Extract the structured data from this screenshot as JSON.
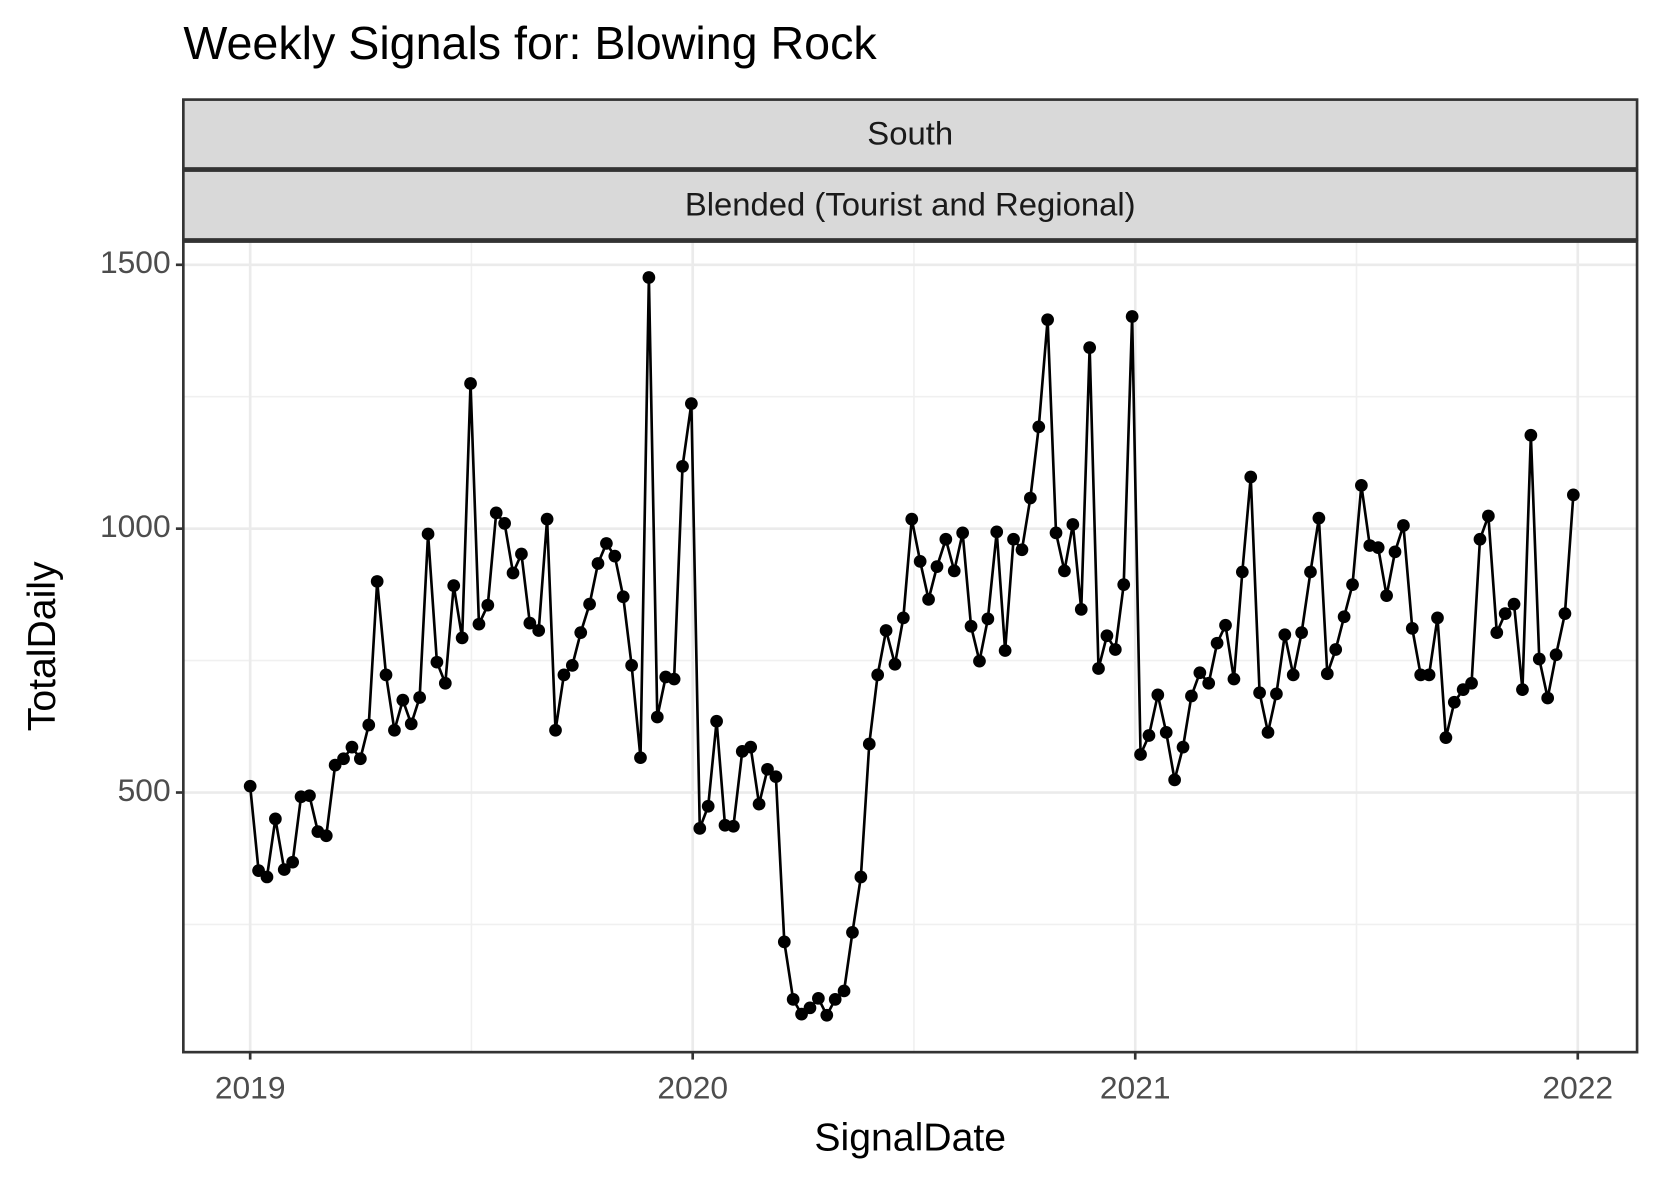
{
  "chart_data": {
    "type": "line",
    "title": "Weekly Signals for: Blowing Rock",
    "facets": [
      "South",
      "Blended (Tourist and Regional)"
    ],
    "x_label": "SignalDate",
    "y_label": "TotalDaily",
    "xlim": [
      2018.849,
      2022.134
    ],
    "xticks": [
      2019,
      2020,
      2021,
      2022
    ],
    "ylim": [
      8,
      1544
    ],
    "yticks": [
      500,
      1000,
      1500
    ],
    "grid": true,
    "x": [
      2019.0,
      2019.019,
      2019.038,
      2019.057,
      2019.077,
      2019.096,
      2019.115,
      2019.134,
      2019.153,
      2019.172,
      2019.192,
      2019.211,
      2019.23,
      2019.249,
      2019.268,
      2019.287,
      2019.307,
      2019.326,
      2019.345,
      2019.364,
      2019.383,
      2019.402,
      2019.422,
      2019.441,
      2019.46,
      2019.479,
      2019.498,
      2019.517,
      2019.537,
      2019.556,
      2019.575,
      2019.594,
      2019.613,
      2019.632,
      2019.652,
      2019.671,
      2019.69,
      2019.709,
      2019.728,
      2019.747,
      2019.767,
      2019.786,
      2019.805,
      2019.824,
      2019.843,
      2019.862,
      2019.882,
      2019.901,
      2019.92,
      2019.939,
      2019.958,
      2019.977,
      2019.997,
      2020.016,
      2020.035,
      2020.054,
      2020.073,
      2020.092,
      2020.112,
      2020.131,
      2020.15,
      2020.169,
      2020.188,
      2020.207,
      2020.227,
      2020.246,
      2020.265,
      2020.284,
      2020.303,
      2020.322,
      2020.342,
      2020.361,
      2020.38,
      2020.399,
      2020.418,
      2020.437,
      2020.457,
      2020.476,
      2020.495,
      2020.514,
      2020.533,
      2020.552,
      2020.572,
      2020.591,
      2020.61,
      2020.629,
      2020.648,
      2020.667,
      2020.687,
      2020.706,
      2020.725,
      2020.744,
      2020.763,
      2020.782,
      2020.802,
      2020.821,
      2020.84,
      2020.859,
      2020.878,
      2020.897,
      2020.917,
      2020.936,
      2020.955,
      2020.974,
      2020.993,
      2021.012,
      2021.031,
      2021.051,
      2021.07,
      2021.089,
      2021.108,
      2021.127,
      2021.146,
      2021.166,
      2021.185,
      2021.204,
      2021.223,
      2021.242,
      2021.261,
      2021.281,
      2021.3,
      2021.319,
      2021.338,
      2021.357,
      2021.376,
      2021.396,
      2021.415,
      2021.434,
      2021.453,
      2021.472,
      2021.491,
      2021.511,
      2021.53,
      2021.549,
      2021.568,
      2021.587,
      2021.606,
      2021.626,
      2021.645,
      2021.664,
      2021.683,
      2021.702,
      2021.721,
      2021.741,
      2021.76,
      2021.779,
      2021.798,
      2021.817,
      2021.836,
      2021.856,
      2021.875,
      2021.894,
      2021.913,
      2021.932,
      2021.951,
      2021.971,
      2021.99
    ],
    "series": [
      {
        "color": "#000000",
        "values": [
          512,
          352,
          340,
          450,
          354,
          368,
          492,
          494,
          426,
          418,
          552,
          564,
          586,
          564,
          628,
          900,
          723,
          618,
          675,
          630,
          680,
          990,
          747,
          707,
          892,
          793,
          1275,
          819,
          855,
          1030,
          1010,
          916,
          952,
          821,
          807,
          1018,
          618,
          723,
          741,
          803,
          857,
          934,
          972,
          948,
          871,
          741,
          566,
          1476,
          643,
          719,
          715,
          1118,
          1237,
          432,
          474,
          635,
          438,
          436,
          578,
          586,
          478,
          544,
          530,
          217,
          108,
          80,
          92,
          110,
          78,
          108,
          124,
          235,
          340,
          592,
          723,
          807,
          743,
          831,
          1018,
          938,
          866,
          928,
          980,
          920,
          992,
          815,
          749,
          829,
          994,
          769,
          980,
          960,
          1058,
          1193,
          1396,
          992,
          920,
          1008,
          847,
          1343,
          735,
          797,
          771,
          894,
          1402,
          572,
          608,
          685,
          614,
          524,
          586,
          683,
          727,
          707,
          783,
          817,
          715,
          918,
          1098,
          689,
          614,
          687,
          799,
          723,
          803,
          918,
          1020,
          725,
          771,
          833,
          894,
          1082,
          968,
          964,
          873,
          956,
          1006,
          811,
          723,
          723,
          831,
          604,
          671,
          695,
          707,
          980,
          1024,
          803,
          839,
          857,
          695,
          1177,
          753,
          679,
          761,
          839,
          1064
        ]
      }
    ]
  }
}
